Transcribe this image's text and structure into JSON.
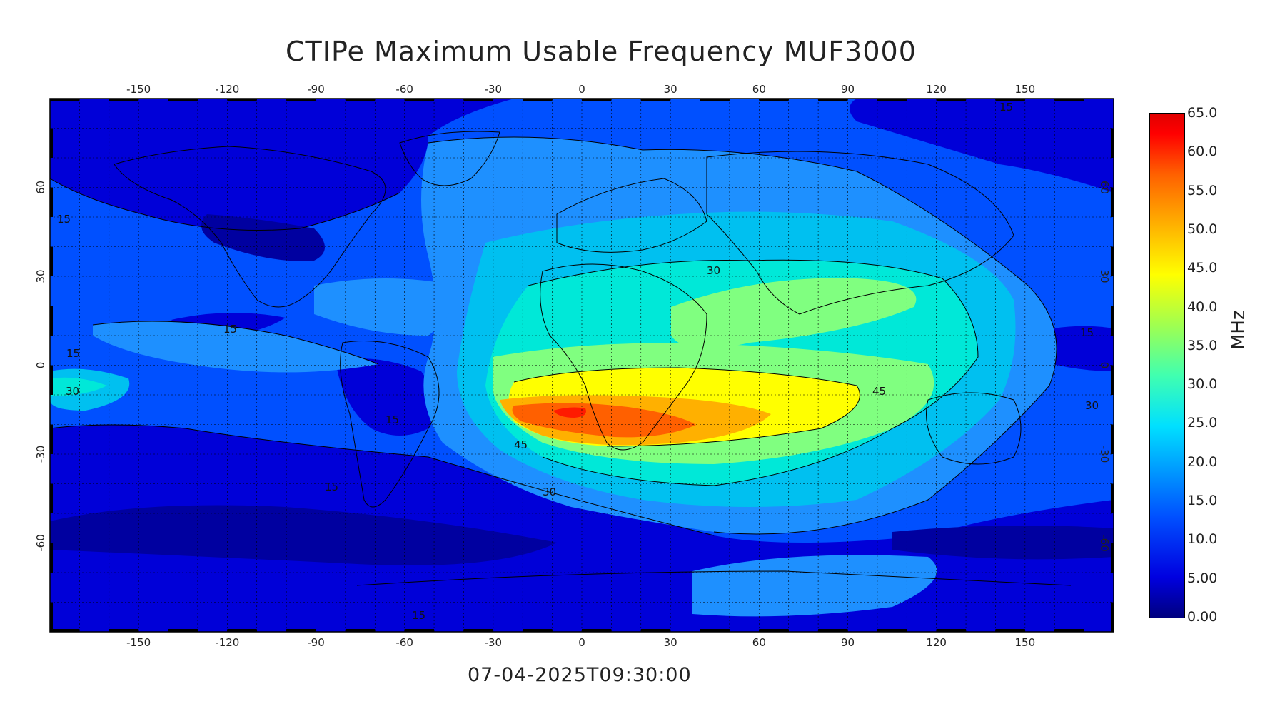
{
  "title": "CTIPe Maximum Usable Frequency MUF3000",
  "timestamp": "07-04-2025T09:30:00",
  "colorbar": {
    "unit": "MHz",
    "ticks": [
      "65.0",
      "60.0",
      "55.0",
      "50.0",
      "45.0",
      "40.0",
      "35.0",
      "30.0",
      "25.0",
      "20.0",
      "15.0",
      "10.0",
      "5.00",
      "0.00"
    ]
  },
  "axes": {
    "longitude_ticks": [
      "-150",
      "-120",
      "-90",
      "-60",
      "-30",
      "0",
      "30",
      "60",
      "90",
      "120",
      "150"
    ],
    "latitude_ticks": [
      "60",
      "30",
      "0",
      "-30",
      "-60"
    ]
  },
  "contour_labels": [
    "15",
    "15",
    "15",
    "15",
    "15",
    "15",
    "15",
    "15",
    "30",
    "30",
    "30",
    "30",
    "45",
    "45"
  ],
  "palette": {
    "level0": "#0000c8",
    "level1": "#0050ff",
    "level2": "#1e90ff",
    "level3": "#00c0f0",
    "level4": "#00e8d8",
    "level5": "#80ff80",
    "level6": "#ffff00",
    "level7": "#ffb000",
    "level8": "#ff6000",
    "level9": "#ff1a00"
  }
}
